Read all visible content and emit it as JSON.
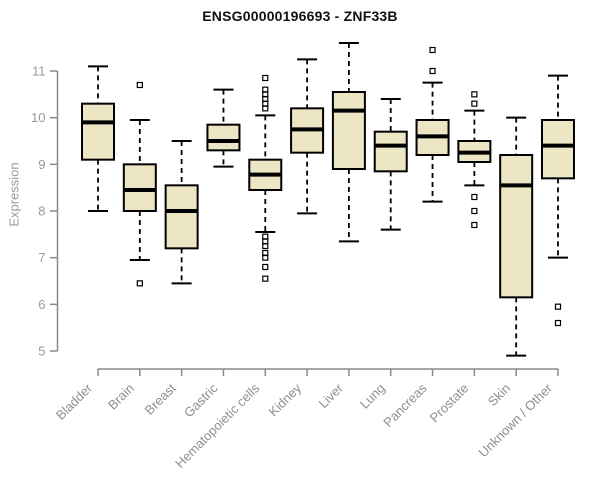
{
  "title": "ENSG00000196693 - ZNF33B",
  "colors": {
    "box_fill": "#ECE6C4",
    "box_stroke": "#000000",
    "axis_line": "#8a8a8a",
    "tick_label": "#9a9a9a",
    "title_color": "#111111",
    "background": "#ffffff"
  },
  "chart_data": {
    "type": "boxplot",
    "title": "ENSG00000196693 - ZNF33B",
    "xlabel": "",
    "ylabel": "Expression",
    "ylim": [
      4.6,
      11.9
    ],
    "yticks": [
      5,
      6,
      7,
      8,
      9,
      10,
      11
    ],
    "grid": false,
    "categories": [
      "Bladder",
      "Brain",
      "Breast",
      "Gastric",
      "Hematopoietic cells",
      "Kidney",
      "Liver",
      "Lung",
      "Pancreas",
      "Prostate",
      "Skin",
      "Unknown / Other"
    ],
    "boxes": [
      {
        "category": "Bladder",
        "whisker_low": 8.0,
        "q1": 9.1,
        "median": 9.9,
        "q3": 10.3,
        "whisker_high": 11.1,
        "outliers": []
      },
      {
        "category": "Brain",
        "whisker_low": 6.95,
        "q1": 8.0,
        "median": 8.45,
        "q3": 9.0,
        "whisker_high": 9.95,
        "outliers": [
          10.7,
          6.45
        ]
      },
      {
        "category": "Breast",
        "whisker_low": 6.45,
        "q1": 7.2,
        "median": 8.0,
        "q3": 8.55,
        "whisker_high": 9.5,
        "outliers": []
      },
      {
        "category": "Gastric",
        "whisker_low": 8.95,
        "q1": 9.3,
        "median": 9.5,
        "q3": 9.85,
        "whisker_high": 10.6,
        "outliers": []
      },
      {
        "category": "Hematopoietic cells",
        "whisker_low": 7.55,
        "q1": 8.45,
        "median": 8.78,
        "q3": 9.1,
        "whisker_high": 10.05,
        "outliers": [
          10.85,
          10.6,
          10.5,
          10.4,
          10.3,
          10.2,
          7.45,
          7.35,
          7.25,
          7.1,
          7.0,
          6.8,
          6.55
        ]
      },
      {
        "category": "Kidney",
        "whisker_low": 7.95,
        "q1": 9.25,
        "median": 9.75,
        "q3": 10.2,
        "whisker_high": 11.25,
        "outliers": []
      },
      {
        "category": "Liver",
        "whisker_low": 7.35,
        "q1": 8.9,
        "median": 10.15,
        "q3": 10.55,
        "whisker_high": 11.6,
        "outliers": []
      },
      {
        "category": "Lung",
        "whisker_low": 7.6,
        "q1": 8.85,
        "median": 9.4,
        "q3": 9.7,
        "whisker_high": 10.4,
        "outliers": []
      },
      {
        "category": "Pancreas",
        "whisker_low": 8.2,
        "q1": 9.2,
        "median": 9.6,
        "q3": 9.95,
        "whisker_high": 10.75,
        "outliers": [
          11.45,
          11.0
        ]
      },
      {
        "category": "Prostate",
        "whisker_low": 8.55,
        "q1": 9.05,
        "median": 9.25,
        "q3": 9.5,
        "whisker_high": 10.15,
        "outliers": [
          10.5,
          10.3,
          8.3,
          8.0,
          7.7
        ]
      },
      {
        "category": "Skin",
        "whisker_low": 4.9,
        "q1": 6.15,
        "median": 8.55,
        "q3": 9.2,
        "whisker_high": 10.0,
        "outliers": []
      },
      {
        "category": "Unknown / Other",
        "whisker_low": 7.0,
        "q1": 8.7,
        "median": 9.4,
        "q3": 9.95,
        "whisker_high": 10.9,
        "outliers": [
          5.95,
          5.6
        ]
      }
    ]
  }
}
